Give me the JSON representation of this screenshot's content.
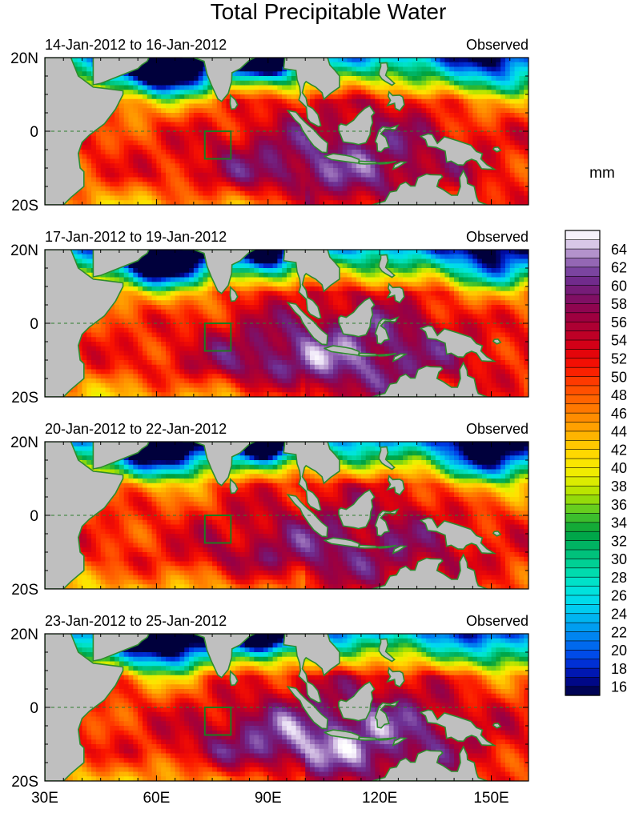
{
  "chart_data": {
    "type": "heatmap",
    "title": "Total Precipitable Water",
    "units": "mm",
    "variable": "Total Precipitable Water",
    "x_ticks": [
      {
        "lon": 30,
        "label": "30E"
      },
      {
        "lon": 60,
        "label": "60E"
      },
      {
        "lon": 90,
        "label": "90E"
      },
      {
        "lon": 120,
        "label": "120E"
      },
      {
        "lon": 150,
        "label": "150E"
      }
    ],
    "y_ticks": [
      {
        "lat": 20,
        "label": "20N"
      },
      {
        "lat": 0,
        "label": "0"
      },
      {
        "lat": -20,
        "label": "20S"
      }
    ],
    "xlim": [
      30,
      160
    ],
    "ylim": [
      -20,
      20
    ],
    "box_region": {
      "lon": [
        73,
        80
      ],
      "lat": [
        -7.5,
        0
      ]
    },
    "colorbar": {
      "min": 15,
      "max": 66,
      "step": 1,
      "labels": [
        "16",
        "18",
        "20",
        "22",
        "24",
        "26",
        "28",
        "30",
        "32",
        "34",
        "36",
        "38",
        "40",
        "42",
        "44",
        "46",
        "48",
        "50",
        "52",
        "54",
        "56",
        "58",
        "60",
        "62",
        "64"
      ]
    },
    "panels": [
      {
        "period": "14-Jan-2012 to 16-Jan-2012",
        "tag": "Observed"
      },
      {
        "period": "17-Jan-2012 to 19-Jan-2012",
        "tag": "Observed"
      },
      {
        "period": "20-Jan-2012 to 22-Jan-2012",
        "tag": "Observed"
      },
      {
        "period": "23-Jan-2012 to 25-Jan-2012",
        "tag": "Observed"
      }
    ]
  }
}
